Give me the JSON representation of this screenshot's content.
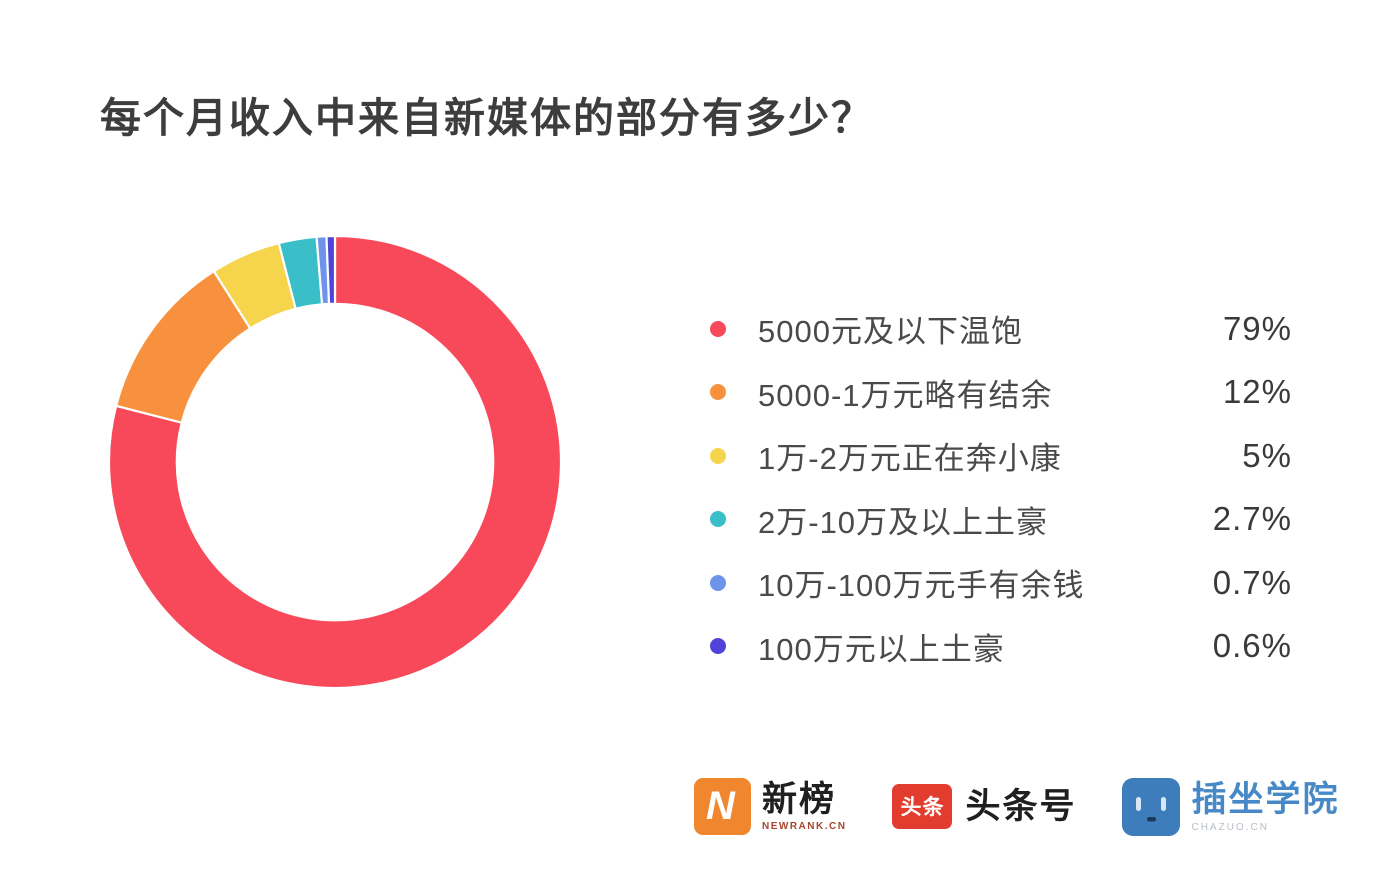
{
  "title": "每个月收入中来自新媒体的部分有多少？",
  "chart_data": {
    "type": "pie",
    "subtype": "donut",
    "title": "每个月收入中来自新媒体的部分有多少？",
    "categories": [
      "5000元及以下温饱",
      "5000-1万元略有结余",
      "1万-2万元正在奔小康",
      "2万-10万及以上土豪",
      "10万-100万元手有余钱",
      "100万元以上土豪"
    ],
    "values": [
      79,
      12,
      5,
      2.7,
      0.7,
      0.6
    ],
    "display_values": [
      "79%",
      "12%",
      "5%",
      "2.7%",
      "0.7%",
      "0.6%"
    ],
    "colors": [
      "#F8495A",
      "#F8913E",
      "#F6D44B",
      "#3ABFC9",
      "#6E93EA",
      "#4F43D9"
    ],
    "unit": "%",
    "start_angle_deg": 0,
    "direction": "clockwise",
    "inner_radius_ratio": 0.7,
    "gap_color": "#ffffff",
    "legend_position": "right"
  },
  "footer": {
    "logos": [
      {
        "name": "newrank",
        "text": "新榜",
        "subtext": "NEWRANK.CN",
        "icon": "newrank-n-icon",
        "icon_letter": "N",
        "icon_color": "#F0872E"
      },
      {
        "name": "toutiao",
        "text": "头条号",
        "icon": "toutiao-icon",
        "icon_text": "头条",
        "icon_color": "#E23C2E"
      },
      {
        "name": "chazuo",
        "text": "插坐学院",
        "subtext": "CHAZUO.CN",
        "icon": "chazuo-face-icon",
        "icon_color": "#3D7DBB"
      }
    ]
  }
}
